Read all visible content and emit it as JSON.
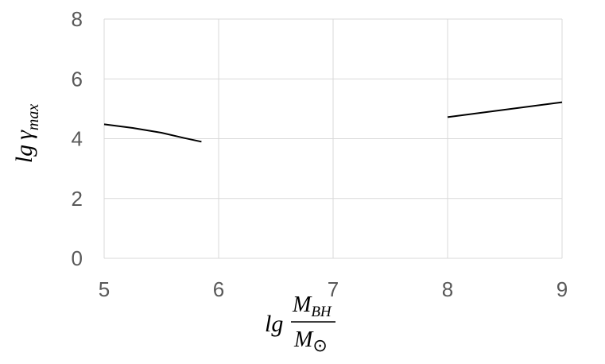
{
  "chart_data": {
    "type": "line",
    "xlim": [
      5,
      9
    ],
    "ylim": [
      0,
      8
    ],
    "x_ticks": [
      "5",
      "6",
      "7",
      "8",
      "9"
    ],
    "y_ticks": [
      "0",
      "2",
      "4",
      "6",
      "8"
    ],
    "grid": true,
    "xlabel": {
      "prefix": "lg",
      "numerator": "M",
      "numerator_sub": "BH",
      "denominator": "M",
      "denominator_sub": "⊙"
    },
    "ylabel": {
      "prefix": "lg",
      "symbol": "γ",
      "sub": "max"
    },
    "series": [
      {
        "points": [
          [
            5.0,
            4.48
          ],
          [
            5.25,
            4.36
          ],
          [
            5.5,
            4.2
          ],
          [
            5.7,
            4.02
          ],
          [
            5.85,
            3.9
          ]
        ]
      },
      {
        "points": [
          [
            8.0,
            4.72
          ],
          [
            8.5,
            4.97
          ],
          [
            9.0,
            5.22
          ]
        ]
      }
    ],
    "colors": {
      "line": "#000000",
      "grid": "#d9d9d9",
      "tick_text": "#595959"
    }
  }
}
